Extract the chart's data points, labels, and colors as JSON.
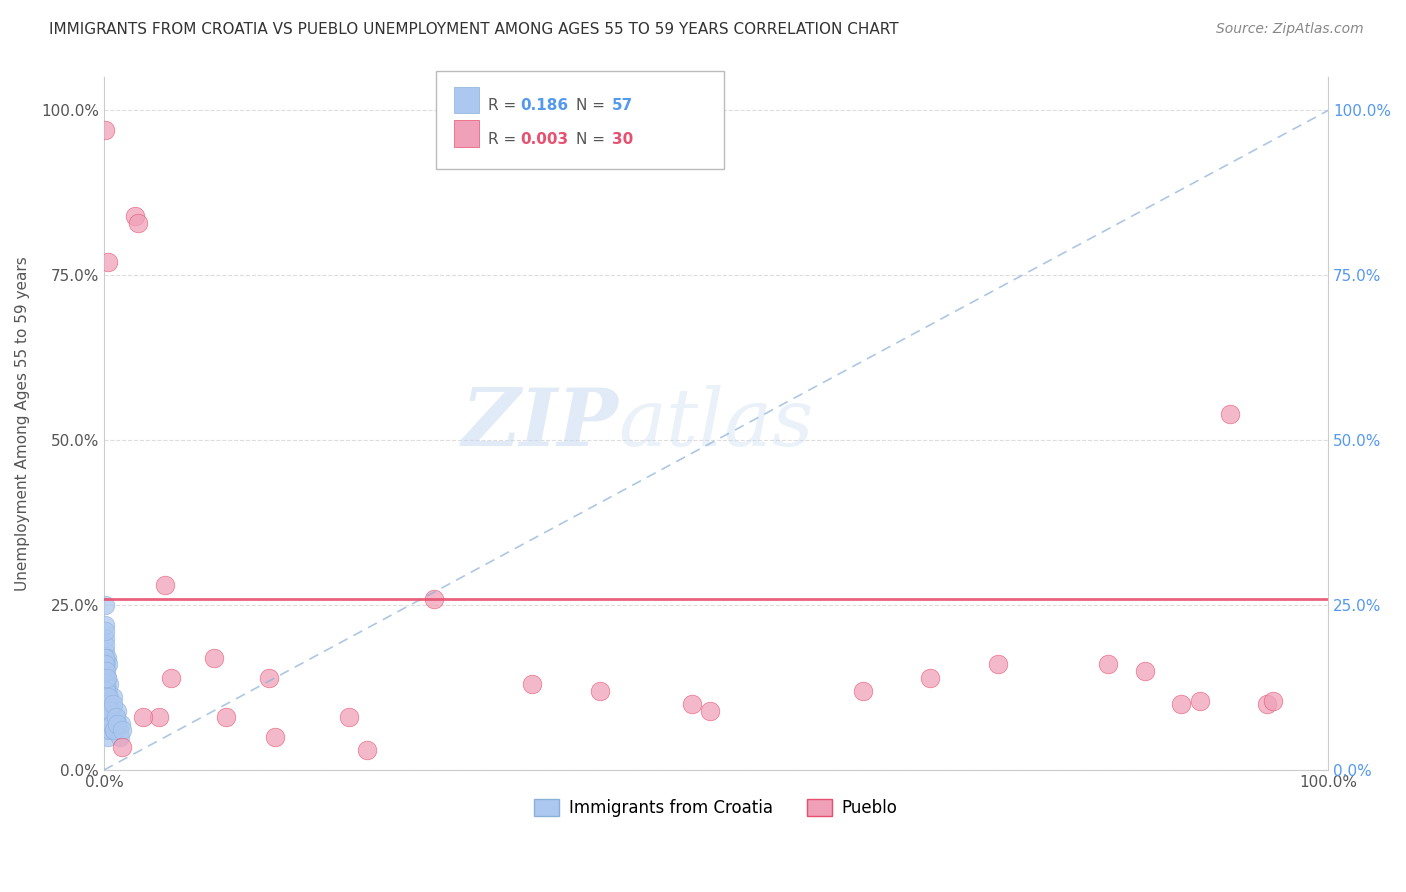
{
  "title": "IMMIGRANTS FROM CROATIA VS PUEBLO UNEMPLOYMENT AMONG AGES 55 TO 59 YEARS CORRELATION CHART",
  "source": "Source: ZipAtlas.com",
  "ylabel": "Unemployment Among Ages 55 to 59 years",
  "legend_label1": "Immigrants from Croatia",
  "legend_label2": "Pueblo",
  "r1": "0.186",
  "n1": "57",
  "r2": "0.003",
  "n2": "30",
  "color1": "#adc8f0",
  "color2": "#f0a0b8",
  "trend1_color": "#8ab0d8",
  "trend2_color": "#e85070",
  "xlim": [
    0,
    100
  ],
  "ylim": [
    0,
    105
  ],
  "yticks": [
    0,
    25,
    50,
    75,
    100
  ],
  "yticklabels_left": [
    "0.0%",
    "25.0%",
    "50.0%",
    "75.0%",
    "100.0%"
  ],
  "yticklabels_right": [
    "0.0%",
    "25.0%",
    "50.0%",
    "75.0%",
    "100.0%"
  ],
  "xticks": [
    0,
    10,
    20,
    30,
    40,
    50,
    60,
    70,
    80,
    90,
    100
  ],
  "xticklabels": [
    "0.0%",
    "",
    "",
    "",
    "",
    "",
    "",
    "",
    "",
    "",
    "100.0%"
  ],
  "blue_x": [
    0.05,
    0.05,
    0.08,
    0.08,
    0.1,
    0.1,
    0.12,
    0.12,
    0.15,
    0.15,
    0.18,
    0.2,
    0.2,
    0.22,
    0.25,
    0.25,
    0.28,
    0.3,
    0.3,
    0.32,
    0.35,
    0.35,
    0.38,
    0.4,
    0.42,
    0.45,
    0.48,
    0.5,
    0.55,
    0.6,
    0.65,
    0.7,
    0.8,
    0.9,
    1.0,
    1.1,
    1.2,
    1.3,
    1.4,
    0.06,
    0.07,
    0.09,
    0.11,
    0.13,
    0.16,
    0.19,
    0.23,
    0.27,
    0.33,
    0.43,
    0.53,
    0.63,
    0.73,
    0.85,
    0.95,
    1.05,
    1.5
  ],
  "blue_y": [
    25.0,
    18.0,
    20.0,
    15.0,
    14.0,
    19.0,
    12.0,
    10.0,
    16.0,
    8.0,
    13.0,
    11.0,
    7.0,
    9.0,
    17.0,
    6.0,
    14.0,
    12.0,
    5.0,
    10.0,
    8.0,
    16.0,
    9.0,
    7.0,
    11.0,
    13.0,
    6.0,
    8.0,
    10.0,
    7.0,
    9.0,
    11.0,
    6.0,
    8.0,
    7.0,
    9.0,
    6.0,
    5.0,
    7.0,
    22.0,
    17.0,
    21.0,
    16.0,
    13.0,
    15.0,
    12.0,
    10.0,
    14.0,
    11.0,
    8.0,
    9.0,
    7.0,
    10.0,
    6.0,
    8.0,
    7.0,
    6.0
  ],
  "pink_x": [
    0.1,
    0.3,
    2.5,
    2.8,
    5.0,
    9.0,
    10.0,
    13.5,
    14.0,
    20.0,
    21.5,
    35.0,
    40.5,
    48.0,
    49.5,
    62.0,
    67.5,
    73.0,
    82.0,
    85.0,
    88.0,
    89.5,
    92.0,
    95.0,
    95.5,
    27.0,
    4.5,
    5.5,
    1.5,
    3.2
  ],
  "pink_y": [
    97.0,
    77.0,
    84.0,
    83.0,
    28.0,
    17.0,
    8.0,
    14.0,
    5.0,
    8.0,
    3.0,
    13.0,
    12.0,
    10.0,
    9.0,
    12.0,
    14.0,
    16.0,
    16.0,
    15.0,
    10.0,
    10.5,
    54.0,
    10.0,
    10.5,
    26.0,
    8.0,
    14.0,
    3.5,
    8.0
  ],
  "watermark_zip": "ZIP",
  "watermark_atlas": "atlas",
  "background_color": "#ffffff",
  "grid_color": "#dddddd",
  "title_color": "#333333",
  "source_color": "#888888",
  "axis_color": "#cccccc",
  "tick_color_left": "#555555",
  "tick_color_right": "#5599ee",
  "legend_box_color": "#eeeeee"
}
